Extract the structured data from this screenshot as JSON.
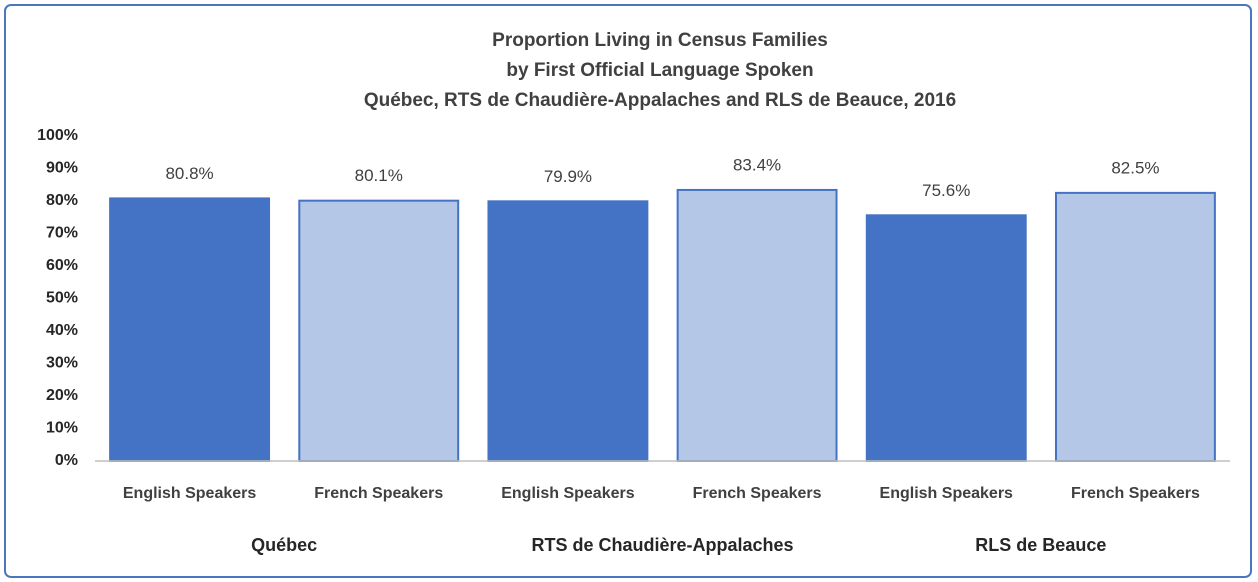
{
  "chart_data": {
    "type": "bar",
    "title": [
      "Proportion  Living in Census Families",
      "by First Official Language Spoken",
      "Québec, RTS de Chaudière-Appalaches and RLS de Beauce, 2016"
    ],
    "categories": [
      "English Speakers",
      "French Speakers",
      "English Speakers",
      "French Speakers",
      "English Speakers",
      "French Speakers"
    ],
    "groups": [
      "Québec",
      "RTS de Chaudière-Appalaches",
      "RLS de Beauce"
    ],
    "values": [
      80.8,
      80.1,
      79.9,
      83.4,
      75.6,
      82.5
    ],
    "value_labels": [
      "80.8%",
      "80.1%",
      "79.9%",
      "83.4%",
      "75.6%",
      "82.5%"
    ],
    "colors": [
      "#4472c4",
      "#b4c7e7",
      "#4472c4",
      "#b4c7e7",
      "#4472c4",
      "#b4c7e7"
    ],
    "edge_color": "#4472c4",
    "ylim": [
      0,
      100
    ],
    "yticks": [
      {
        "value": 0,
        "label": "0%"
      },
      {
        "value": 10,
        "label": "10%"
      },
      {
        "value": 20,
        "label": "20%"
      },
      {
        "value": 30,
        "label": "30%"
      },
      {
        "value": 40,
        "label": "40%"
      },
      {
        "value": 50,
        "label": "50%"
      },
      {
        "value": 60,
        "label": "60%"
      },
      {
        "value": 70,
        "label": "70%"
      },
      {
        "value": 80,
        "label": "80%"
      },
      {
        "value": 90,
        "label": "90%"
      },
      {
        "value": 100,
        "label": "100%"
      }
    ],
    "grid": false
  }
}
